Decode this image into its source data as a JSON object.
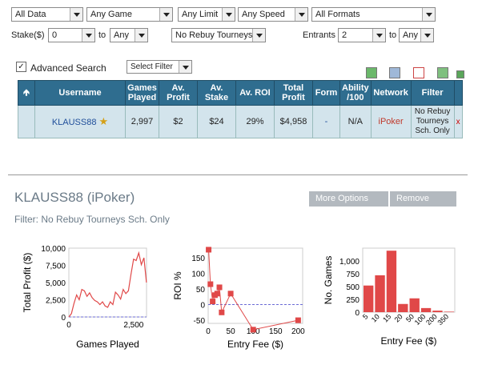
{
  "filters": {
    "data": "All Data",
    "game": "Any Game",
    "limit": "Any Limit",
    "speed": "Any Speed",
    "format": "All Formats",
    "stake_label": "Stake($)",
    "stake_from": "0",
    "to1": "to",
    "stake_to": "Any",
    "rebuy": "No Rebuy Tourneys",
    "entrants_label": "Entrants",
    "entrants_from": "2",
    "to2": "to",
    "entrants_to": "Any"
  },
  "advanced": {
    "checked": "✓",
    "label": "Advanced Search",
    "select_filter": "Select Filter"
  },
  "table": {
    "headers": [
      "Username",
      "Games Played",
      "Av. Profit",
      "Av. Stake",
      "Av. ROI",
      "Total Profit",
      "Form",
      "Ability /100",
      "Network",
      "Filter"
    ],
    "row": {
      "username": "KLAUSS88",
      "games": "2,997",
      "avg_profit": "$2",
      "avg_stake": "$24",
      "avg_roi": "29%",
      "total_profit": "$4,958",
      "form": "-",
      "ability": "N/A",
      "network": "iPoker",
      "filter": "No Rebuy Tourneys Sch. Only",
      "remove": "x"
    }
  },
  "player": {
    "title": "KLAUSS88 (iPoker)",
    "filter_line": "Filter: No Rebuy Tourneys Sch. Only",
    "more_options": "More Options",
    "remove": "Remove"
  },
  "colors": {
    "header_bg": "#2f6d8f",
    "row_bg": "#d3e4ec",
    "series": "#e04848",
    "link": "#1f4e9a",
    "network": "#c0392b"
  },
  "chart_data": [
    {
      "type": "line",
      "xlabel": "Games Played",
      "ylabel": "Total Profit ($)",
      "xlim": [
        0,
        3000
      ],
      "ylim": [
        0,
        10000
      ],
      "xticks": [
        "0",
        "2,500"
      ],
      "yticks": [
        "0",
        "2,500",
        "5,000",
        "7,500",
        "10,000"
      ],
      "x": [
        0,
        100,
        200,
        300,
        400,
        500,
        600,
        700,
        800,
        900,
        1000,
        1100,
        1200,
        1300,
        1400,
        1500,
        1600,
        1700,
        1800,
        1900,
        2000,
        2100,
        2200,
        2300,
        2400,
        2500,
        2600,
        2700,
        2800,
        2900,
        2997
      ],
      "y": [
        0,
        500,
        2000,
        3200,
        2500,
        4000,
        3800,
        3000,
        3500,
        2800,
        2400,
        2200,
        1800,
        2200,
        1600,
        1400,
        2200,
        1800,
        3600,
        3200,
        2600,
        4000,
        3400,
        3800,
        6200,
        8400,
        8200,
        9300,
        7600,
        8600,
        5000
      ]
    },
    {
      "type": "scatter",
      "xlabel": "Entry Fee ($)",
      "ylabel": "ROI %",
      "xlim": [
        0,
        210
      ],
      "ylim": [
        -60,
        180
      ],
      "xticks": [
        "0",
        "50",
        "100",
        "150",
        "200"
      ],
      "yticks": [
        "-50",
        "0",
        "50",
        "100",
        "150"
      ],
      "x": [
        1,
        5,
        10,
        15,
        20,
        25,
        30,
        50,
        100,
        200
      ],
      "y": [
        175,
        65,
        10,
        30,
        35,
        55,
        -25,
        35,
        -80,
        -50
      ]
    },
    {
      "type": "bar",
      "xlabel": "Entry Fee ($)",
      "ylabel": "No. Games",
      "ylim": [
        0,
        1250
      ],
      "yticks": [
        "0",
        "250",
        "500",
        "750",
        "1,000"
      ],
      "categories": [
        "5",
        "10",
        "15",
        "20",
        "50",
        "100",
        "200",
        "350"
      ],
      "values": [
        520,
        720,
        1200,
        160,
        270,
        80,
        30,
        10
      ]
    }
  ]
}
